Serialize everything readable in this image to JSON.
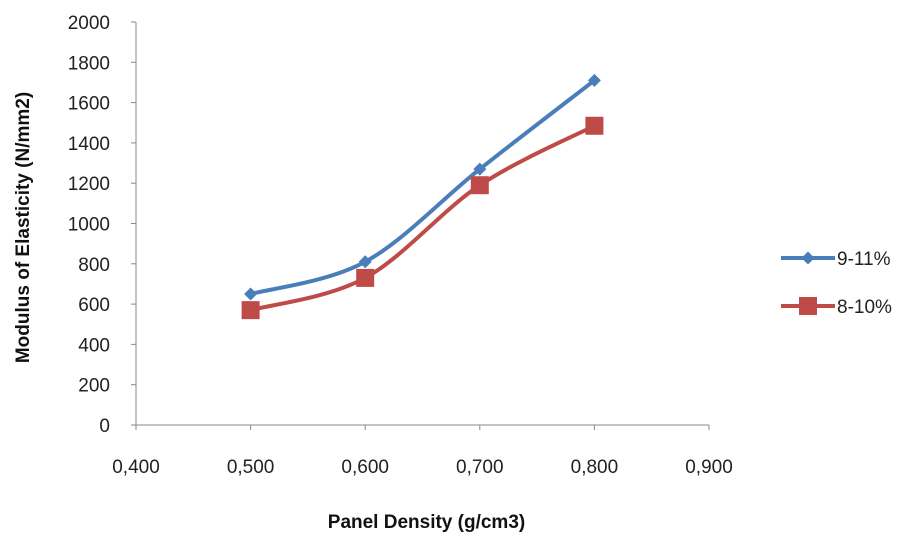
{
  "chart_data": {
    "type": "line",
    "xlabel": "Panel Density (g/cm3)",
    "ylabel": "Modulus of Elasticity (N/mm2)",
    "xlim": [
      0.4,
      0.9
    ],
    "ylim": [
      0,
      2000
    ],
    "x_ticks": [
      "0,400",
      "0,500",
      "0,600",
      "0,700",
      "0,800",
      "0,900"
    ],
    "y_ticks": [
      "0",
      "200",
      "400",
      "600",
      "800",
      "1000",
      "1200",
      "1400",
      "1600",
      "1800",
      "2000"
    ],
    "grid": false,
    "legend_position": "right",
    "smooth": true,
    "series": [
      {
        "name": "9-11%",
        "color": "#4a7ebb",
        "marker": "diamond",
        "x": [
          0.5,
          0.6,
          0.7,
          0.8
        ],
        "y": [
          650,
          810,
          1270,
          1710
        ]
      },
      {
        "name": "8-10%",
        "color": "#be4b48",
        "marker": "square",
        "x": [
          0.5,
          0.6,
          0.7,
          0.8
        ],
        "y": [
          570,
          730,
          1190,
          1485
        ]
      }
    ]
  }
}
